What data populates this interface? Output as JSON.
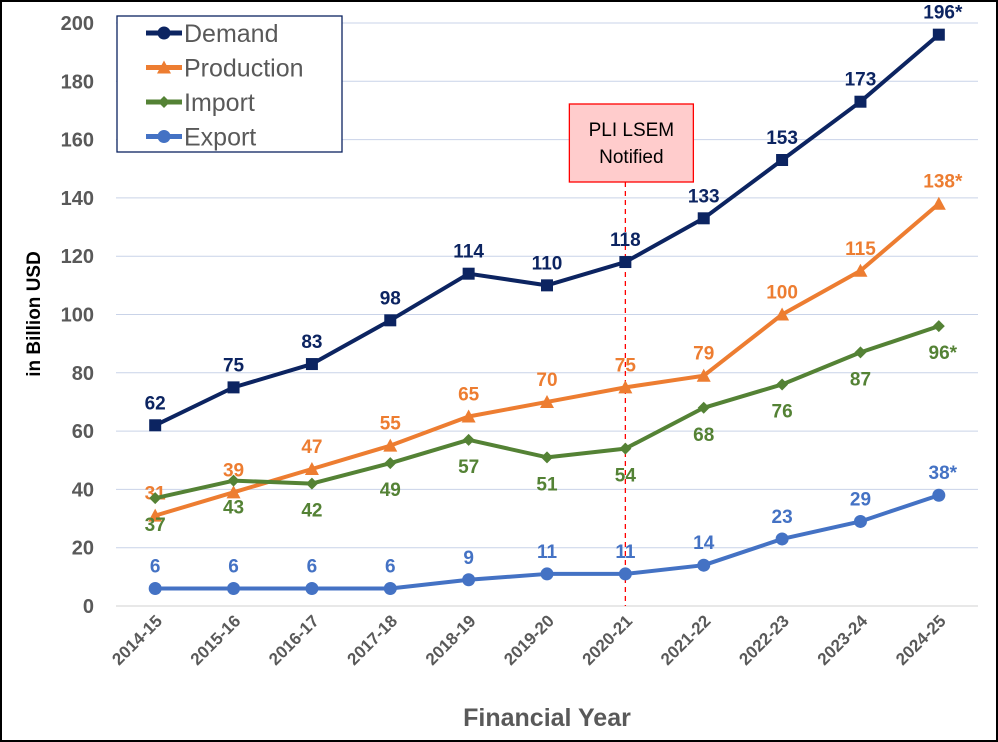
{
  "chart_data": {
    "type": "line",
    "title": "",
    "xlabel": "Financial Year",
    "ylabel": "in Billion USD",
    "ylim": [
      0,
      200
    ],
    "yticks": [
      0,
      20,
      40,
      60,
      80,
      100,
      120,
      140,
      160,
      180,
      200
    ],
    "grid": true,
    "legend_position": "top-left",
    "categories": [
      "2014-15",
      "2015-16",
      "2016-17",
      "2017-18",
      "2018-19",
      "2019-20",
      "2020-21",
      "2021-22",
      "2022-23",
      "2023-24",
      "2024-25"
    ],
    "series": [
      {
        "name": "Demand",
        "color": "#0c2461",
        "marker": "square",
        "label_position": "above",
        "values": [
          62,
          75,
          83,
          98,
          114,
          110,
          118,
          133,
          153,
          173,
          196
        ],
        "labels": [
          "62",
          "75",
          "83",
          "98",
          "114",
          "110",
          "118",
          "133",
          "153",
          "173",
          "196*"
        ]
      },
      {
        "name": "Production",
        "color": "#ed7d31",
        "marker": "triangle",
        "label_position": "above",
        "values": [
          31,
          39,
          47,
          55,
          65,
          70,
          75,
          79,
          100,
          115,
          138
        ],
        "labels": [
          "31",
          "39",
          "47",
          "55",
          "65",
          "70",
          "75",
          "79",
          "100",
          "115",
          "138*"
        ]
      },
      {
        "name": "Import",
        "color": "#548235",
        "marker": "diamond",
        "label_position": "below",
        "values": [
          37,
          43,
          42,
          49,
          57,
          51,
          54,
          68,
          76,
          87,
          96
        ],
        "labels": [
          "37",
          "43",
          "42",
          "49",
          "57",
          "51",
          "54",
          "68",
          "76",
          "87",
          "96*"
        ]
      },
      {
        "name": "Export",
        "color": "#4472c4",
        "marker": "circle",
        "label_position": "above",
        "values": [
          6,
          6,
          6,
          6,
          9,
          11,
          11,
          14,
          23,
          29,
          38
        ],
        "labels": [
          "6",
          "6",
          "6",
          "6",
          "9",
          "11",
          "11",
          "14",
          "23",
          "29",
          "38*"
        ]
      }
    ],
    "annotation": {
      "category": "2020-21",
      "line1": "PLI LSEM",
      "line2": "Notified",
      "fill": "#ffcccc",
      "border": "#ff0000"
    }
  }
}
